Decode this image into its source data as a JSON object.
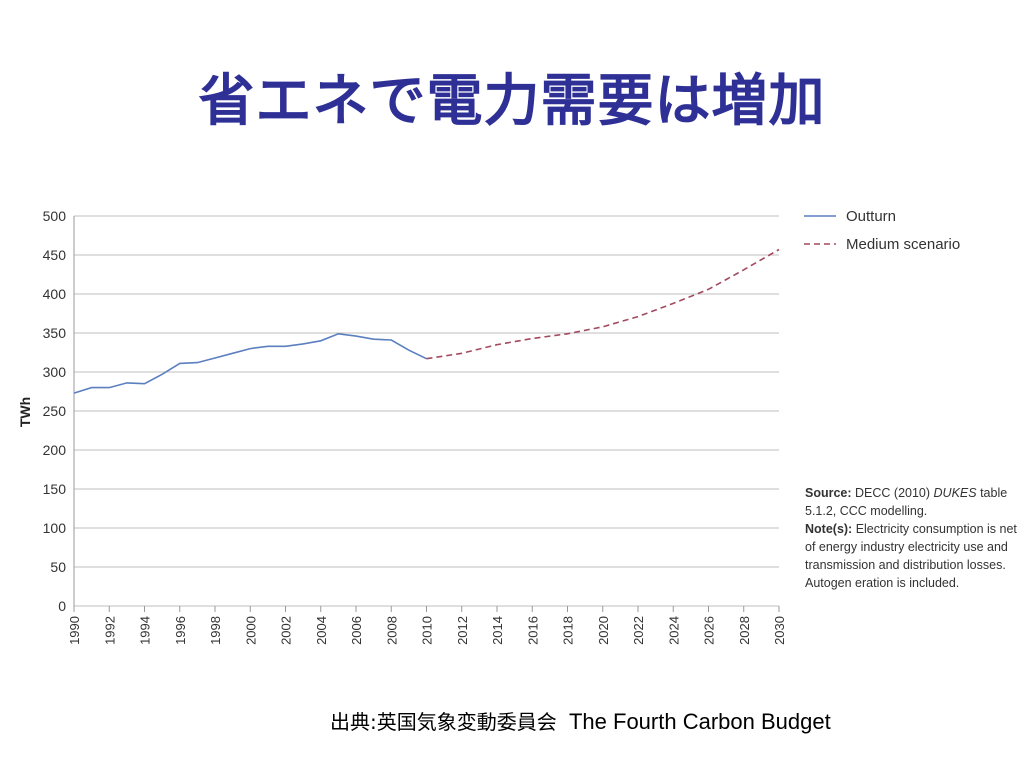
{
  "slide": {
    "title": "省エネで電力需要は増加"
  },
  "colors": {
    "title": "#2f3096",
    "outturn": "#5b7fbf",
    "medium_scenario": "#a24a5e",
    "grid": "#bfbfbf"
  },
  "chart_data": {
    "type": "line",
    "title": "",
    "xlabel": "",
    "ylabel": "TWh",
    "ylim": [
      0,
      500
    ],
    "xlim": [
      1990,
      2030
    ],
    "yticks": [
      0,
      50,
      100,
      150,
      200,
      250,
      300,
      350,
      400,
      450,
      500
    ],
    "xticks": [
      1990,
      1992,
      1994,
      1996,
      1998,
      2000,
      2002,
      2004,
      2006,
      2008,
      2010,
      2012,
      2014,
      2016,
      2018,
      2020,
      2022,
      2024,
      2026,
      2028,
      2030
    ],
    "grid": true,
    "legend_position": "top-right",
    "series": [
      {
        "name": "Outturn",
        "style": "solid",
        "x": [
          1990,
          1991,
          1992,
          1993,
          1994,
          1995,
          1996,
          1997,
          1998,
          1999,
          2000,
          2001,
          2002,
          2003,
          2004,
          2005,
          2006,
          2007,
          2008,
          2009,
          2010
        ],
        "y": [
          273,
          280,
          280,
          286,
          285,
          297,
          311,
          312,
          318,
          324,
          330,
          333,
          333,
          336,
          340,
          349,
          346,
          342,
          341,
          328,
          317
        ]
      },
      {
        "name": "Medium scenario",
        "style": "dashed",
        "x": [
          2010,
          2012,
          2014,
          2016,
          2018,
          2020,
          2022,
          2024,
          2026,
          2028,
          2030
        ],
        "y": [
          317,
          324,
          335,
          343,
          349,
          358,
          371,
          388,
          406,
          431,
          457
        ]
      }
    ]
  },
  "note": {
    "source_label": "Source:",
    "source_text": " DECC (2010) ",
    "source_italic": "DUKES",
    "source_tail": " table 5.1.2, CCC modelling.",
    "notes_label": "Note(s):",
    "notes_text": " Electricity consumption is net of energy industry electricity use and transmission and distribution losses. Autogen eration is included."
  },
  "credit": {
    "jp": "出典:英国気象変動委員会",
    "en": "The Fourth Carbon Budget"
  }
}
